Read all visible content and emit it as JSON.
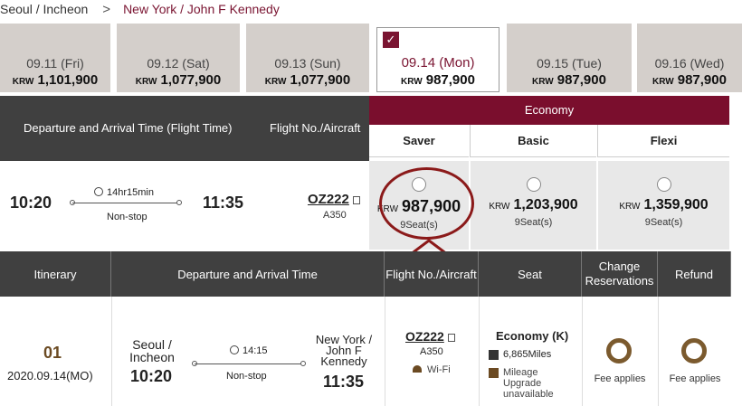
{
  "route": {
    "from": "Seoul / Incheon",
    "separator": ">",
    "to": "New York / John F Kennedy"
  },
  "dates": [
    {
      "date": "09.11 (Fri)",
      "currency": "KRW",
      "price": "1,101,900",
      "selected": false
    },
    {
      "date": "09.12 (Sat)",
      "currency": "KRW",
      "price": "1,077,900",
      "selected": false
    },
    {
      "date": "09.13 (Sun)",
      "currency": "KRW",
      "price": "1,077,900",
      "selected": false
    },
    {
      "date": "09.14 (Mon)",
      "currency": "KRW",
      "price": "987,900",
      "selected": true
    },
    {
      "date": "09.15 (Tue)",
      "currency": "KRW",
      "price": "987,900",
      "selected": false
    },
    {
      "date": "09.16 (Wed)",
      "currency": "KRW",
      "price": "987,900",
      "selected": false
    }
  ],
  "table1": {
    "headers": {
      "time": "Departure and Arrival Time (Flight Time)",
      "flight": "Flight No./Aircraft",
      "cabin": "Economy"
    },
    "fare_headers": [
      "Saver",
      "Basic",
      "Flexi"
    ],
    "row": {
      "departure": "10:20",
      "arrival": "11:35",
      "duration": "14hr15min",
      "stops": "Non-stop",
      "flight_no": "OZ222",
      "aircraft": "A350",
      "fares": [
        {
          "currency": "KRW",
          "price": "987,900",
          "seats": "9Seat(s)"
        },
        {
          "currency": "KRW",
          "price": "1,203,900",
          "seats": "9Seat(s)"
        },
        {
          "currency": "KRW",
          "price": "1,359,900",
          "seats": "9Seat(s)"
        }
      ]
    }
  },
  "table2": {
    "headers": [
      "Itinerary",
      "Departure and Arrival Time",
      "Flight No./Aircraft",
      "Seat",
      "Change Reservations",
      "Refund"
    ],
    "row": {
      "number": "01",
      "date": "2020.09.14(MO)",
      "origin": "Seoul / Incheon",
      "dep_time": "10:20",
      "destination": "New York / John F Kennedy",
      "arr_time": "11:35",
      "duration": "14:15",
      "stops": "Non-stop",
      "flight_no": "OZ222",
      "aircraft": "A350",
      "wifi": "Wi-Fi",
      "class": "Economy (K)",
      "miles": "6,865Miles",
      "mileage_upgrade": "Mileage Upgrade unavailable",
      "change_fee": "Fee applies",
      "refund_fee": "Fee applies"
    }
  },
  "colors": {
    "accent": "#7a0e2d",
    "header_bg": "#404040",
    "ring": "#7b5a2e",
    "annotation": "#8b1a1a"
  }
}
